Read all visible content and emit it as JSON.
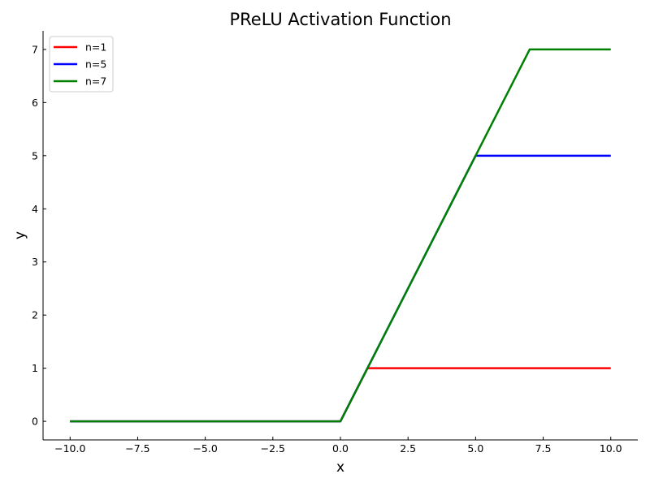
{
  "chart_data": {
    "type": "line",
    "title": "PReLU Activation Function",
    "xlabel": "x",
    "ylabel": "y",
    "xlim": [
      -11.0,
      11.0
    ],
    "ylim": [
      -0.35,
      7.35
    ],
    "xticks": [
      -10.0,
      -7.5,
      -5.0,
      -2.5,
      0.0,
      2.5,
      5.0,
      7.5,
      10.0
    ],
    "xtick_labels": [
      "−10.0",
      "−7.5",
      "−5.0",
      "−2.5",
      "0.0",
      "2.5",
      "5.0",
      "7.5",
      "10.0"
    ],
    "yticks": [
      0,
      1,
      2,
      3,
      4,
      5,
      6,
      7
    ],
    "ytick_labels": [
      "0",
      "1",
      "2",
      "3",
      "4",
      "5",
      "6",
      "7"
    ],
    "grid": false,
    "legend_position": "top-left",
    "series": [
      {
        "name": "n=1",
        "color": "#ff0000",
        "x": [
          -10,
          0,
          1,
          10
        ],
        "y": [
          0,
          0,
          1,
          1
        ]
      },
      {
        "name": "n=5",
        "color": "#0000ff",
        "x": [
          -10,
          0,
          5,
          10
        ],
        "y": [
          0,
          0,
          5,
          5
        ]
      },
      {
        "name": "n=7",
        "color": "#008000",
        "x": [
          -10,
          0,
          7,
          10
        ],
        "y": [
          0,
          0,
          7,
          7
        ]
      }
    ]
  }
}
